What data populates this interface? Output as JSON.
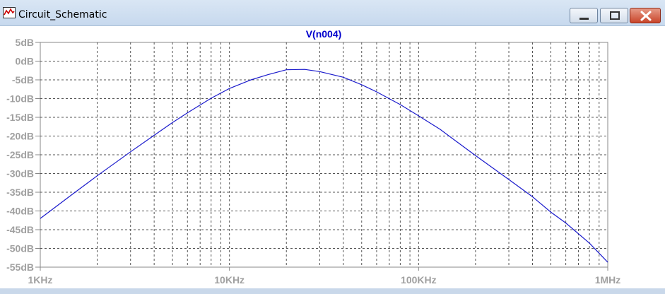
{
  "window": {
    "title": "Circuit_Schematic",
    "icon": "waveform-icon",
    "controls": [
      "minimize-icon",
      "maximize-icon",
      "close-icon"
    ]
  },
  "colors": {
    "trace": "#1a1acc",
    "title": "#0000cc",
    "axis_label": "#a0a0a0",
    "grid": "#555555",
    "close_button": "#c9452a"
  },
  "chart_data": {
    "type": "line",
    "title": "V(n004)",
    "xscale": "log",
    "xlim": [
      1000,
      1000000
    ],
    "ylim": [
      -55,
      5
    ],
    "grid": true,
    "x_tick_labels": [
      "1KHz",
      "10KHz",
      "100KHz",
      "1MHz"
    ],
    "x_ticks": [
      1000,
      10000,
      100000,
      1000000
    ],
    "y_tick_labels": [
      "5dB",
      "0dB",
      "-5dB",
      "-10dB",
      "-15dB",
      "-20dB",
      "-25dB",
      "-30dB",
      "-35dB",
      "-40dB",
      "-45dB",
      "-50dB",
      "-55dB"
    ],
    "y_ticks": [
      5,
      0,
      -5,
      -10,
      -15,
      -20,
      -25,
      -30,
      -35,
      -40,
      -45,
      -50,
      -55
    ],
    "series": [
      {
        "name": "V(n004)",
        "x": [
          1000,
          1500,
          2000,
          3000,
          4000,
          5000,
          6000,
          8000,
          10000,
          13000,
          16000,
          20000,
          25000,
          30000,
          40000,
          50000,
          60000,
          80000,
          100000,
          130000,
          160000,
          200000,
          300000,
          400000,
          500000,
          600000,
          800000,
          1000000
        ],
        "y": [
          -42,
          -35.3,
          -30.6,
          -24.2,
          -19.8,
          -16.4,
          -13.8,
          -9.9,
          -7.3,
          -5,
          -3.6,
          -2.3,
          -2.2,
          -2.8,
          -4.3,
          -6.3,
          -8.2,
          -11.6,
          -14.6,
          -18.2,
          -21.6,
          -25.2,
          -31.6,
          -36.2,
          -40.3,
          -43.2,
          -48.6,
          -53.7
        ]
      }
    ]
  }
}
